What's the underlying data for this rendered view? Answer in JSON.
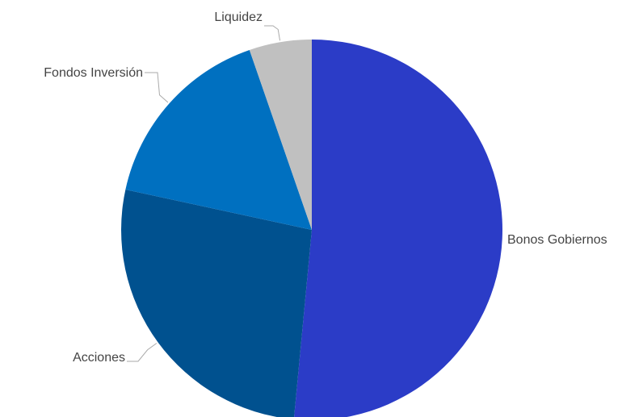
{
  "chart_data": {
    "type": "pie",
    "title": "",
    "start_angle_deg": 0,
    "direction": "clockwise",
    "legend": "none",
    "slices": [
      {
        "label": "Bonos Gobiernos",
        "value": 51.5,
        "color": "#2b3cc7"
      },
      {
        "label": "Acciones",
        "value": 26.9,
        "color": "#00518f"
      },
      {
        "label": "Fondos Inversión",
        "value": 16.3,
        "color": "#0070c0"
      },
      {
        "label": "Liquidez",
        "value": 5.3,
        "color": "#c0c0c0"
      }
    ]
  }
}
